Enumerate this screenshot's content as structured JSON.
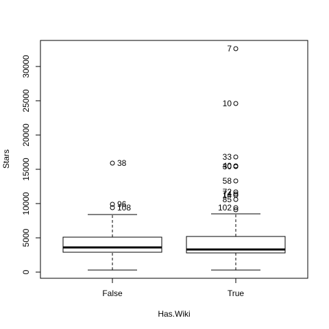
{
  "chart_data": {
    "type": "boxplot",
    "title": "",
    "xlabel": "Has.Wiki",
    "ylabel": "Stars",
    "categories": [
      "False",
      "True"
    ],
    "ylim": [
      -1000,
      33500
    ],
    "yticks": [
      0,
      5000,
      10000,
      15000,
      20000,
      25000,
      30000
    ],
    "yticklabels": [
      "0",
      "5000",
      "10000",
      "15000",
      "20000",
      "25000",
      "30000"
    ],
    "grid": false,
    "boxes": [
      {
        "category": "False",
        "whisker_low": 300,
        "q1": 2900,
        "median": 3600,
        "q3": 5100,
        "whisker_high": 8400,
        "outliers": [
          {
            "value": 15900,
            "label": "38"
          },
          {
            "value": 9900,
            "label": "96"
          },
          {
            "value": 9400,
            "label": "108"
          }
        ]
      },
      {
        "category": "True",
        "whisker_low": 300,
        "q1": 2800,
        "median": 3300,
        "q3": 5200,
        "whisker_high": 8500,
        "outliers": [
          {
            "value": 32600,
            "label": "7"
          },
          {
            "value": 24600,
            "label": "10"
          },
          {
            "value": 16800,
            "label": "33"
          },
          {
            "value": 15500,
            "label": "40"
          },
          {
            "value": 15400,
            "label": "30"
          },
          {
            "value": 13300,
            "label": "58"
          },
          {
            "value": 11700,
            "label": "72"
          },
          {
            "value": 11400,
            "label": "74"
          },
          {
            "value": 11200,
            "label": "14"
          },
          {
            "value": 10600,
            "label": "85"
          },
          {
            "value": 9400,
            "label": "102"
          },
          {
            "value": 9100,
            "label": ""
          }
        ]
      }
    ]
  }
}
